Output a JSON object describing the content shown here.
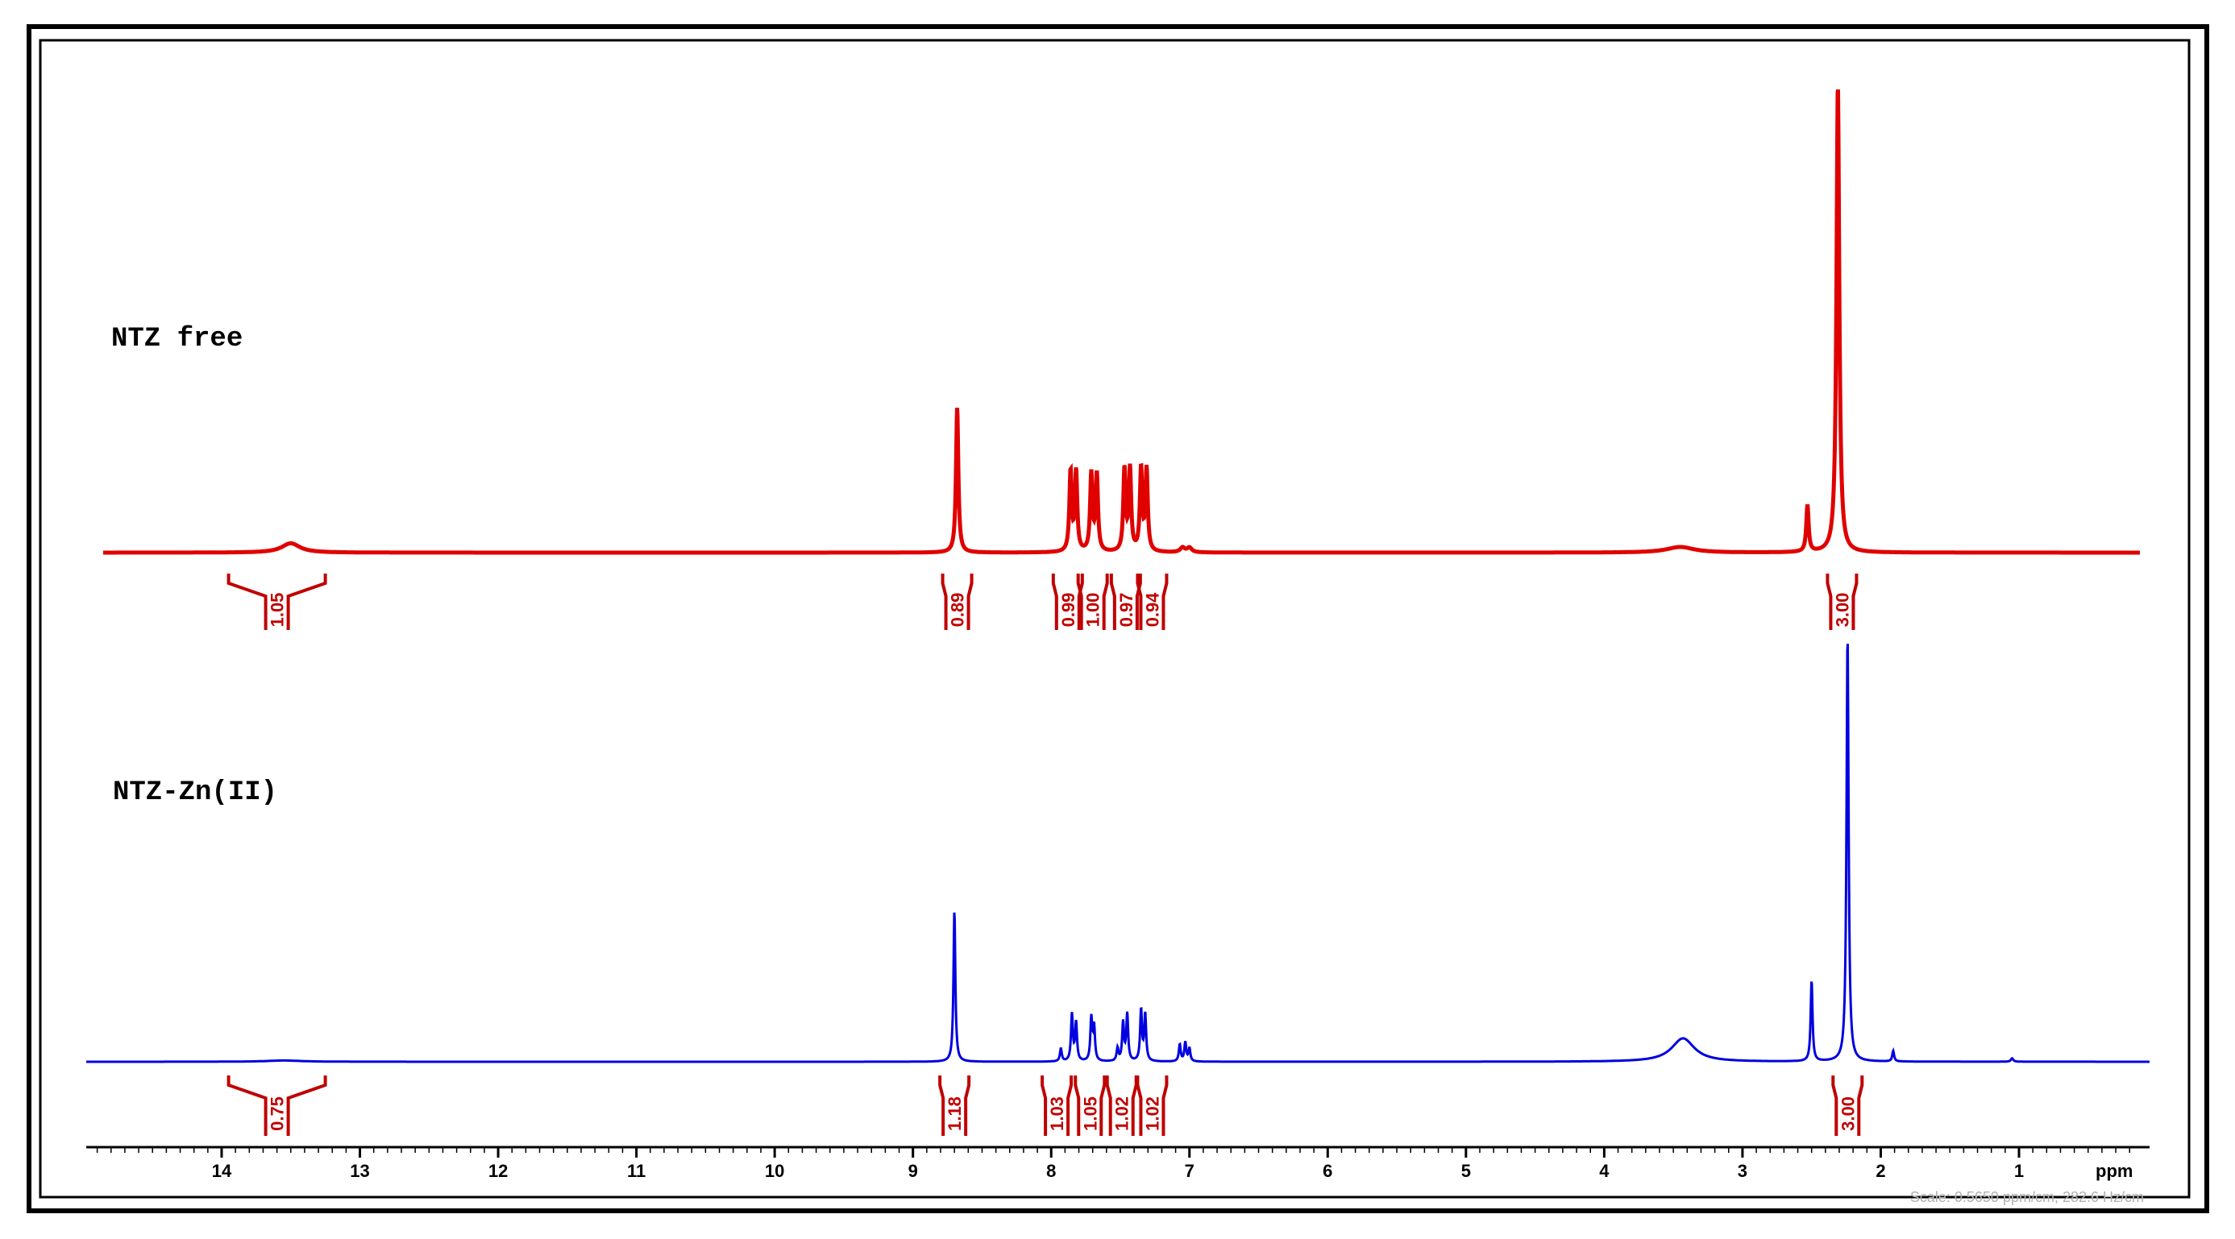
{
  "chart_data": {
    "type": "line",
    "title": "",
    "xlabel": "ppm",
    "ylabel": "",
    "x_axis": {
      "min": 15.0,
      "max": 0.0,
      "reversed": true,
      "major_ticks": [
        14,
        13,
        12,
        11,
        10,
        9,
        8,
        7,
        6,
        5,
        4,
        3,
        2,
        1
      ],
      "minor_step": 0.1
    },
    "scale_note": "Scale: 0.5650 ppm/cm, 282.6 Hz/cm",
    "series": [
      {
        "name": "NTZ free",
        "color": "#e00000",
        "peaks": [
          {
            "ppm": 13.5,
            "height": 0.02,
            "width": 0.08
          },
          {
            "ppm": 8.68,
            "height": 0.31,
            "width": 0.01
          },
          {
            "ppm": 7.86,
            "height": 0.17,
            "width": 0.01
          },
          {
            "ppm": 7.82,
            "height": 0.17,
            "width": 0.01
          },
          {
            "ppm": 7.71,
            "height": 0.165,
            "width": 0.01
          },
          {
            "ppm": 7.67,
            "height": 0.165,
            "width": 0.01
          },
          {
            "ppm": 7.47,
            "height": 0.175,
            "width": 0.01
          },
          {
            "ppm": 7.43,
            "height": 0.175,
            "width": 0.01
          },
          {
            "ppm": 7.35,
            "height": 0.175,
            "width": 0.01
          },
          {
            "ppm": 7.31,
            "height": 0.175,
            "width": 0.01
          },
          {
            "ppm": 7.05,
            "height": 0.01,
            "width": 0.02
          },
          {
            "ppm": 7.0,
            "height": 0.01,
            "width": 0.02
          },
          {
            "ppm": 3.45,
            "height": 0.012,
            "width": 0.12
          },
          {
            "ppm": 2.53,
            "height": 0.1,
            "width": 0.01
          },
          {
            "ppm": 2.31,
            "height": 1.0,
            "width": 0.012
          }
        ],
        "integrals": [
          {
            "center": 13.6,
            "label": "1.05"
          },
          {
            "center": 8.68,
            "label": "0.89"
          },
          {
            "center": 7.88,
            "label": "0.99"
          },
          {
            "center": 7.7,
            "label": "1.00"
          },
          {
            "center": 7.46,
            "label": "0.97"
          },
          {
            "center": 7.27,
            "label": "0.94"
          },
          {
            "center": 2.28,
            "label": "3.00"
          }
        ]
      },
      {
        "name": "NTZ-Zn(II)",
        "color": "#0000e0",
        "peaks": [
          {
            "ppm": 13.55,
            "height": 0.003,
            "width": 0.15
          },
          {
            "ppm": 8.7,
            "height": 0.355,
            "width": 0.008
          },
          {
            "ppm": 7.93,
            "height": 0.03,
            "width": 0.008
          },
          {
            "ppm": 7.85,
            "height": 0.11,
            "width": 0.008
          },
          {
            "ppm": 7.82,
            "height": 0.09,
            "width": 0.008
          },
          {
            "ppm": 7.71,
            "height": 0.1,
            "width": 0.008
          },
          {
            "ppm": 7.69,
            "height": 0.08,
            "width": 0.008
          },
          {
            "ppm": 7.52,
            "height": 0.03,
            "width": 0.008
          },
          {
            "ppm": 7.48,
            "height": 0.09,
            "width": 0.008
          },
          {
            "ppm": 7.45,
            "height": 0.11,
            "width": 0.008
          },
          {
            "ppm": 7.35,
            "height": 0.12,
            "width": 0.008
          },
          {
            "ppm": 7.32,
            "height": 0.11,
            "width": 0.008
          },
          {
            "ppm": 7.07,
            "height": 0.04,
            "width": 0.008
          },
          {
            "ppm": 7.03,
            "height": 0.045,
            "width": 0.008
          },
          {
            "ppm": 7.0,
            "height": 0.03,
            "width": 0.008
          },
          {
            "ppm": 3.43,
            "height": 0.055,
            "width": 0.1
          },
          {
            "ppm": 2.5,
            "height": 0.19,
            "width": 0.008
          },
          {
            "ppm": 2.24,
            "height": 1.0,
            "width": 0.009
          },
          {
            "ppm": 1.91,
            "height": 0.025,
            "width": 0.008
          },
          {
            "ppm": 1.05,
            "height": 0.008,
            "width": 0.01
          }
        ],
        "integrals": [
          {
            "center": 13.6,
            "label": "0.75"
          },
          {
            "center": 8.7,
            "label": "1.18"
          },
          {
            "center": 7.96,
            "label": "1.03"
          },
          {
            "center": 7.72,
            "label": "1.05"
          },
          {
            "center": 7.49,
            "label": "1.02"
          },
          {
            "center": 7.27,
            "label": "1.02"
          },
          {
            "center": 2.24,
            "label": "3.00"
          }
        ]
      }
    ],
    "grid": false,
    "legend": "none"
  }
}
